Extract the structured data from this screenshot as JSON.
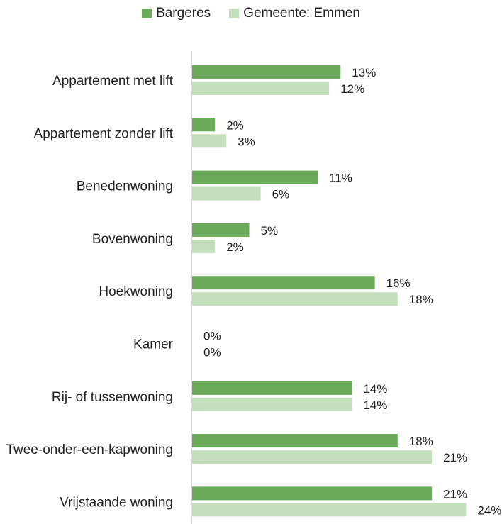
{
  "chart_data": {
    "type": "bar",
    "orientation": "horizontal",
    "categories": [
      "Appartement met lift",
      "Appartement zonder lift",
      "Benedenwoning",
      "Bovenwoning",
      "Hoekwoning",
      "Kamer",
      "Rij- of tussenwoning",
      "Twee-onder-een-kapwoning",
      "Vrijstaande woning"
    ],
    "series": [
      {
        "name": "Bargeres",
        "color": "#6aaa5a",
        "values": [
          13,
          2,
          11,
          5,
          16,
          0,
          14,
          18,
          21
        ]
      },
      {
        "name": "Gemeente: Emmen",
        "color": "#c4dfbc",
        "values": [
          12,
          3,
          6,
          2,
          18,
          0,
          14,
          21,
          24
        ]
      }
    ],
    "value_suffix": "%",
    "xlim": [
      0,
      24
    ],
    "grid": false,
    "legend_position": "top-center"
  }
}
